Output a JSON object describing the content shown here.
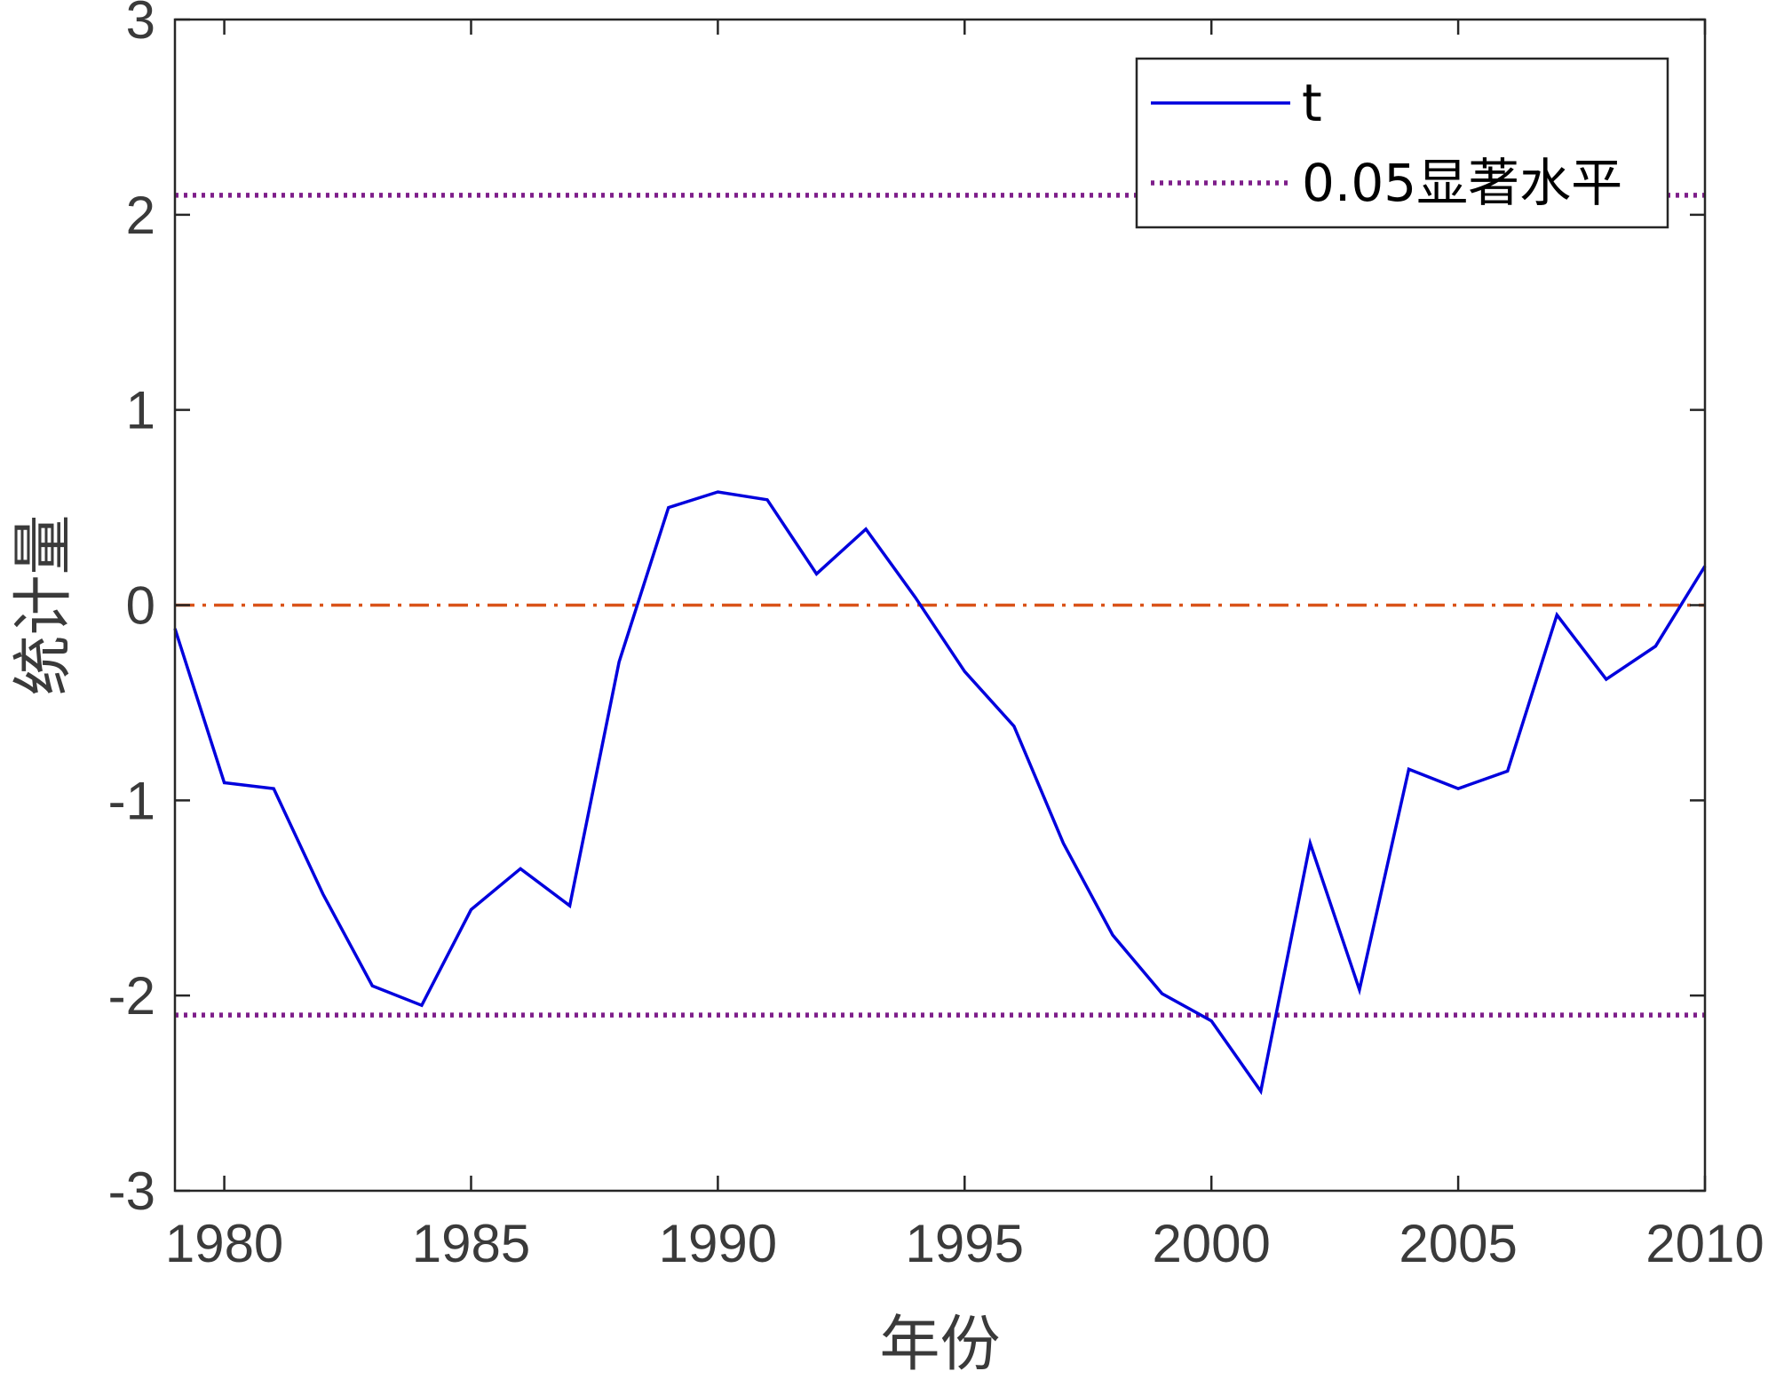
{
  "chart_data": {
    "type": "line",
    "title": "",
    "xlabel": "年份",
    "ylabel": "统计量",
    "xlim": [
      1979,
      2010
    ],
    "ylim": [
      -3,
      3
    ],
    "xticks": [
      1980,
      1985,
      1990,
      1995,
      2000,
      2005,
      2010
    ],
    "yticks": [
      3,
      2,
      1,
      0,
      -1,
      -2,
      -3
    ],
    "xtick_labels": [
      "1980",
      "1985",
      "1990",
      "1995",
      "2000",
      "2005",
      "2010"
    ],
    "ytick_labels": [
      "3",
      "2",
      "1",
      "0",
      "-1",
      "-2",
      "-3"
    ],
    "grid": false,
    "legend_position": "top-right",
    "series": [
      {
        "name": "t",
        "color": "#0000dd",
        "style": "solid",
        "x": [
          1979,
          1980,
          1981,
          1982,
          1983,
          1984,
          1985,
          1986,
          1987,
          1988,
          1989,
          1990,
          1991,
          1992,
          1993,
          1994,
          1995,
          1996,
          1997,
          1998,
          1999,
          2000,
          2001,
          2002,
          2003,
          2004,
          2005,
          2006,
          2007,
          2008,
          2009,
          2010
        ],
        "y": [
          -0.12,
          -0.91,
          -0.94,
          -1.48,
          -1.95,
          -2.05,
          -1.56,
          -1.35,
          -1.54,
          -0.29,
          0.5,
          0.58,
          0.54,
          0.16,
          0.39,
          0.04,
          -0.34,
          -0.62,
          -1.22,
          -1.69,
          -1.99,
          -2.13,
          -2.49,
          -1.22,
          -1.97,
          -0.84,
          -0.94,
          -0.85,
          -0.05,
          -0.38,
          -0.21,
          0.2
        ]
      },
      {
        "name": "0.05显著水平",
        "color": "#7e1e8a",
        "style": "dotted",
        "y_values": [
          2.1,
          -2.1
        ]
      },
      {
        "name": "",
        "color": "#d95319",
        "style": "dash-dot",
        "y_values": [
          0
        ]
      }
    ]
  }
}
